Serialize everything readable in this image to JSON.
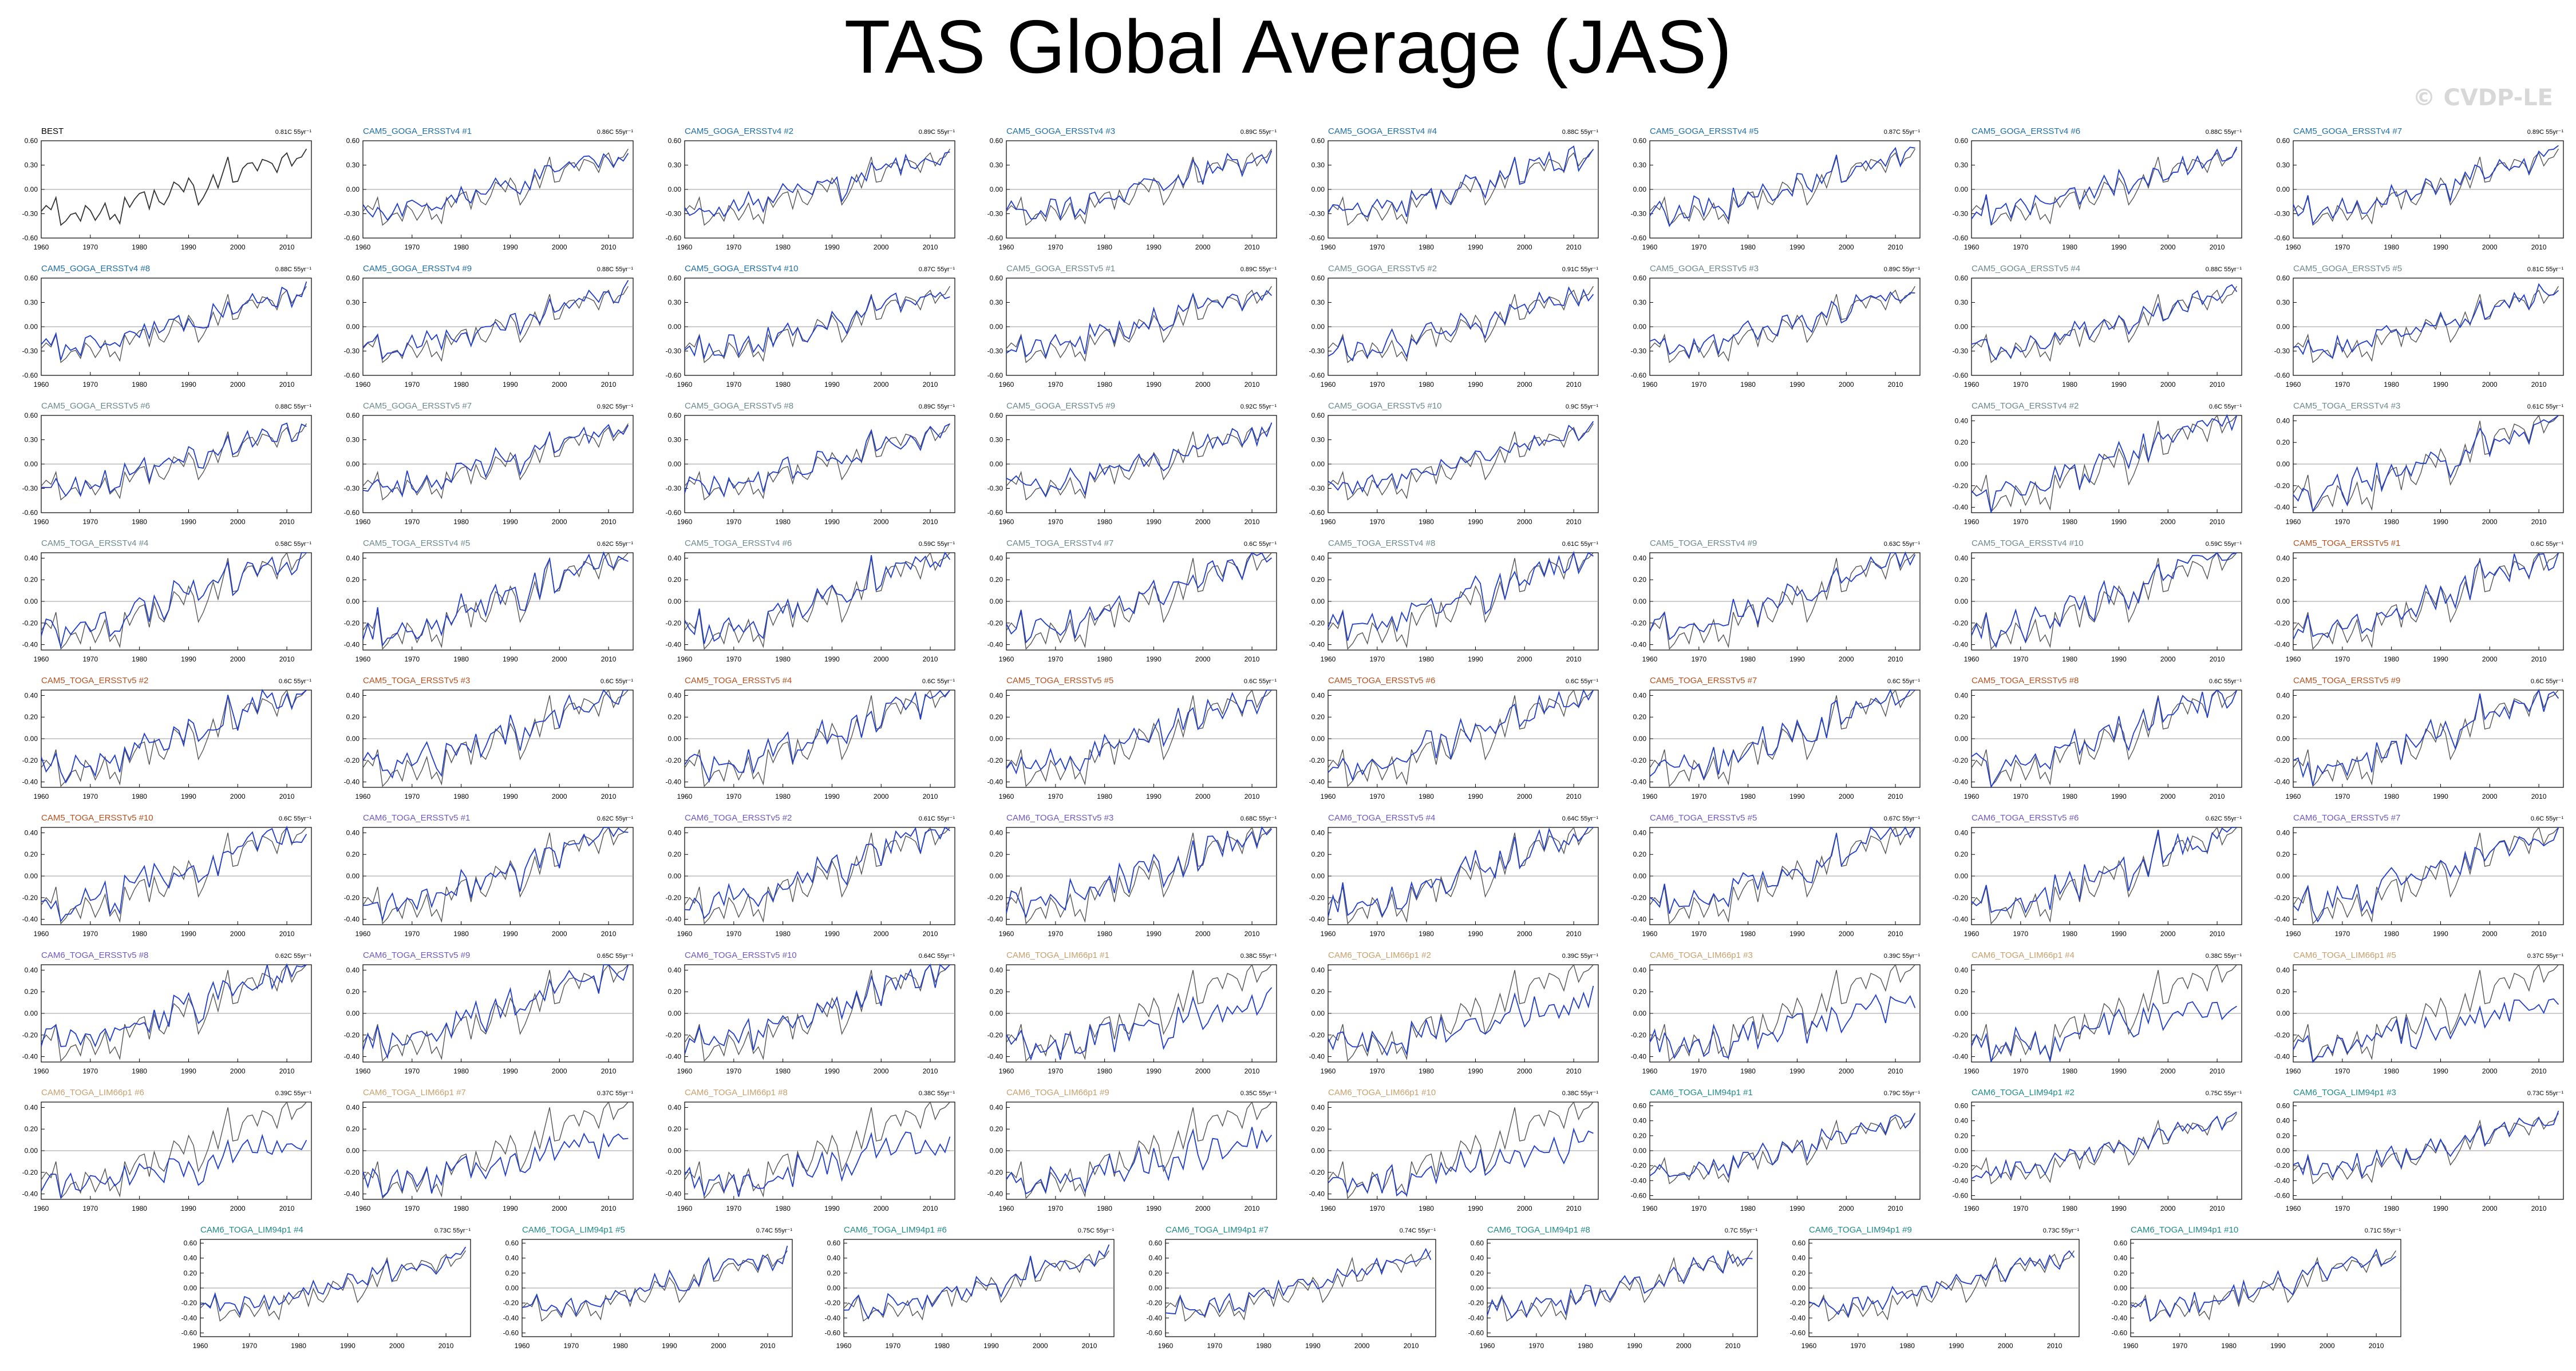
{
  "page": {
    "title": "TAS Global Average (JAS)",
    "watermark": "© CVDP-LE"
  },
  "colors": {
    "observation_line": "#555555",
    "model_line": "#1f3ccc",
    "zero_line": "#999999",
    "title_black": "#000000",
    "title_goga_v4": "#1f6fa6",
    "title_goga_v5": "#6d8a8a",
    "title_cam5_toga": "#b5501f",
    "title_cam6_toga": "#6f5ac0",
    "title_lim66": "#c9a06d",
    "title_lim94": "#1f8a8a"
  },
  "chart_data": {
    "type": "line",
    "shared": {
      "xlim": [
        1960,
        2015
      ],
      "x_ticks": [
        "1960",
        "1970",
        "1980",
        "1990",
        "2000",
        "2010"
      ],
      "yticks_wide": [
        "0.60",
        "0.30",
        "0.00",
        "-0.30",
        "-0.60"
      ],
      "yticks_narrow": [
        "0.40",
        "0.20",
        "0.00",
        "-0.20",
        "-0.40"
      ],
      "ylim_wide": [
        -0.6,
        0.6
      ],
      "ylim_narrow": [
        -0.45,
        0.45
      ],
      "ylim_lim94": [
        -0.65,
        0.65
      ],
      "yticks_lim94": [
        "0.60",
        "0.40",
        "0.20",
        "0.00",
        "-0.20",
        "-0.40",
        "-0.60"
      ]
    },
    "observations": {
      "name": "BEST",
      "x": [
        1960,
        1961,
        1962,
        1963,
        1964,
        1965,
        1966,
        1967,
        1968,
        1969,
        1970,
        1971,
        1972,
        1973,
        1974,
        1975,
        1976,
        1977,
        1978,
        1979,
        1980,
        1981,
        1982,
        1983,
        1984,
        1985,
        1986,
        1987,
        1988,
        1989,
        1990,
        1991,
        1992,
        1993,
        1994,
        1995,
        1996,
        1997,
        1998,
        1999,
        2000,
        2001,
        2002,
        2003,
        2004,
        2005,
        2006,
        2007,
        2008,
        2009,
        2010,
        2011,
        2012,
        2013,
        2014
      ],
      "y": [
        -0.27,
        -0.2,
        -0.25,
        -0.1,
        -0.44,
        -0.39,
        -0.31,
        -0.29,
        -0.39,
        -0.2,
        -0.26,
        -0.38,
        -0.29,
        -0.17,
        -0.37,
        -0.31,
        -0.42,
        -0.1,
        -0.22,
        -0.12,
        -0.05,
        -0.03,
        -0.24,
        -0.01,
        -0.15,
        -0.19,
        -0.08,
        0.09,
        0.05,
        -0.03,
        0.14,
        0.05,
        -0.19,
        -0.1,
        0.02,
        0.18,
        0.02,
        0.21,
        0.4,
        0.09,
        0.1,
        0.26,
        0.32,
        0.33,
        0.23,
        0.37,
        0.35,
        0.32,
        0.21,
        0.39,
        0.45,
        0.29,
        0.38,
        0.4,
        0.5
      ]
    },
    "panels": [
      {
        "title": "BEST",
        "trend": "0.81C 55yr⁻¹",
        "color": "title_black",
        "row": 0,
        "col": 0,
        "scale": "wide",
        "obs_only": true
      },
      {
        "title": "CAM5_GOGA_ERSSTv4 #1",
        "trend": "0.86C 55yr⁻¹",
        "color": "title_goga_v4",
        "row": 0,
        "col": 1,
        "scale": "wide",
        "seed": 11
      },
      {
        "title": "CAM5_GOGA_ERSSTv4 #2",
        "trend": "0.89C 55yr⁻¹",
        "color": "title_goga_v4",
        "row": 0,
        "col": 2,
        "scale": "wide",
        "seed": 12
      },
      {
        "title": "CAM5_GOGA_ERSSTv4 #3",
        "trend": "0.89C 55yr⁻¹",
        "color": "title_goga_v4",
        "row": 0,
        "col": 3,
        "scale": "wide",
        "seed": 13
      },
      {
        "title": "CAM5_GOGA_ERSSTv4 #4",
        "trend": "0.88C 55yr⁻¹",
        "color": "title_goga_v4",
        "row": 0,
        "col": 4,
        "scale": "wide",
        "seed": 14
      },
      {
        "title": "CAM5_GOGA_ERSSTv4 #5",
        "trend": "0.87C 55yr⁻¹",
        "color": "title_goga_v4",
        "row": 0,
        "col": 5,
        "scale": "wide",
        "seed": 15
      },
      {
        "title": "CAM5_GOGA_ERSSTv4 #6",
        "trend": "0.88C 55yr⁻¹",
        "color": "title_goga_v4",
        "row": 0,
        "col": 6,
        "scale": "wide",
        "seed": 16
      },
      {
        "title": "CAM5_GOGA_ERSSTv4 #7",
        "trend": "0.89C 55yr⁻¹",
        "color": "title_goga_v4",
        "row": 0,
        "col": 7,
        "scale": "wide",
        "seed": 17
      },
      {
        "title": "CAM5_GOGA_ERSSTv4 #8",
        "trend": "0.88C 55yr⁻¹",
        "color": "title_goga_v4",
        "row": 1,
        "col": 0,
        "scale": "wide",
        "seed": 18
      },
      {
        "title": "CAM5_GOGA_ERSSTv4 #9",
        "trend": "0.88C 55yr⁻¹",
        "color": "title_goga_v4",
        "row": 1,
        "col": 1,
        "scale": "wide",
        "seed": 19
      },
      {
        "title": "CAM5_GOGA_ERSSTv4 #10",
        "trend": "0.87C 55yr⁻¹",
        "color": "title_goga_v4",
        "row": 1,
        "col": 2,
        "scale": "wide",
        "seed": 20
      },
      {
        "title": "CAM5_GOGA_ERSSTv5 #1",
        "trend": "0.89C 55yr⁻¹",
        "color": "title_goga_v5",
        "row": 1,
        "col": 3,
        "scale": "wide",
        "seed": 21
      },
      {
        "title": "CAM5_GOGA_ERSSTv5 #2",
        "trend": "0.91C 55yr⁻¹",
        "color": "title_goga_v5",
        "row": 1,
        "col": 4,
        "scale": "wide",
        "seed": 22
      },
      {
        "title": "CAM5_GOGA_ERSSTv5 #3",
        "trend": "0.89C 55yr⁻¹",
        "color": "title_goga_v5",
        "row": 1,
        "col": 5,
        "scale": "wide",
        "seed": 23
      },
      {
        "title": "CAM5_GOGA_ERSSTv5 #4",
        "trend": "0.88C 55yr⁻¹",
        "color": "title_goga_v5",
        "row": 1,
        "col": 6,
        "scale": "wide",
        "seed": 24
      },
      {
        "title": "CAM5_GOGA_ERSSTv5 #5",
        "trend": "0.81C 55yr⁻¹",
        "color": "title_goga_v5",
        "row": 1,
        "col": 7,
        "scale": "wide",
        "seed": 25
      },
      {
        "title": "CAM5_GOGA_ERSSTv5 #6",
        "trend": "0.88C 55yr⁻¹",
        "color": "title_goga_v5",
        "row": 2,
        "col": 0,
        "scale": "wide",
        "seed": 26
      },
      {
        "title": "CAM5_GOGA_ERSSTv5 #7",
        "trend": "0.92C 55yr⁻¹",
        "color": "title_goga_v5",
        "row": 2,
        "col": 1,
        "scale": "wide",
        "seed": 27
      },
      {
        "title": "CAM5_GOGA_ERSSTv5 #8",
        "trend": "0.89C 55yr⁻¹",
        "color": "title_goga_v5",
        "row": 2,
        "col": 2,
        "scale": "wide",
        "seed": 28
      },
      {
        "title": "CAM5_GOGA_ERSSTv5 #9",
        "trend": "0.92C 55yr⁻¹",
        "color": "title_goga_v5",
        "row": 2,
        "col": 3,
        "scale": "wide",
        "seed": 29
      },
      {
        "title": "CAM5_GOGA_ERSSTv5 #10",
        "trend": "0.9C 55yr⁻¹",
        "color": "title_goga_v5",
        "row": 2,
        "col": 4,
        "scale": "wide",
        "seed": 30
      },
      {
        "title": "CAM5_TOGA_ERSSTv4 #2",
        "trend": "0.6C 55yr⁻¹",
        "color": "title_goga_v5",
        "row": 2,
        "col": 6,
        "scale": "narrow",
        "seed": 31
      },
      {
        "title": "CAM5_TOGA_ERSSTv4 #3",
        "trend": "0.61C 55yr⁻¹",
        "color": "title_goga_v5",
        "row": 2,
        "col": 7,
        "scale": "narrow",
        "seed": 32
      },
      {
        "title": "CAM5_TOGA_ERSSTv4 #4",
        "trend": "0.58C 55yr⁻¹",
        "color": "title_goga_v5",
        "row": 3,
        "col": 0,
        "scale": "narrow",
        "seed": 33
      },
      {
        "title": "CAM5_TOGA_ERSSTv4 #5",
        "trend": "0.62C 55yr⁻¹",
        "color": "title_goga_v5",
        "row": 3,
        "col": 1,
        "scale": "narrow",
        "seed": 34
      },
      {
        "title": "CAM5_TOGA_ERSSTv4 #6",
        "trend": "0.59C 55yr⁻¹",
        "color": "title_goga_v5",
        "row": 3,
        "col": 2,
        "scale": "narrow",
        "seed": 35
      },
      {
        "title": "CAM5_TOGA_ERSSTv4 #7",
        "trend": "0.6C 55yr⁻¹",
        "color": "title_goga_v5",
        "row": 3,
        "col": 3,
        "scale": "narrow",
        "seed": 36
      },
      {
        "title": "CAM5_TOGA_ERSSTv4 #8",
        "trend": "0.61C 55yr⁻¹",
        "color": "title_goga_v5",
        "row": 3,
        "col": 4,
        "scale": "narrow",
        "seed": 37
      },
      {
        "title": "CAM5_TOGA_ERSSTv4 #9",
        "trend": "0.63C 55yr⁻¹",
        "color": "title_goga_v5",
        "row": 3,
        "col": 5,
        "scale": "narrow",
        "seed": 38
      },
      {
        "title": "CAM5_TOGA_ERSSTv4 #10",
        "trend": "0.59C 55yr⁻¹",
        "color": "title_goga_v5",
        "row": 3,
        "col": 6,
        "scale": "narrow",
        "seed": 39
      },
      {
        "title": "CAM5_TOGA_ERSSTv5 #1",
        "trend": "0.6C 55yr⁻¹",
        "color": "title_cam5_toga",
        "row": 3,
        "col": 7,
        "scale": "narrow",
        "seed": 40
      },
      {
        "title": "CAM5_TOGA_ERSSTv5 #2",
        "trend": "0.6C 55yr⁻¹",
        "color": "title_cam5_toga",
        "row": 4,
        "col": 0,
        "scale": "narrow",
        "seed": 41
      },
      {
        "title": "CAM5_TOGA_ERSSTv5 #3",
        "trend": "0.6C 55yr⁻¹",
        "color": "title_cam5_toga",
        "row": 4,
        "col": 1,
        "scale": "narrow",
        "seed": 42
      },
      {
        "title": "CAM5_TOGA_ERSSTv5 #4",
        "trend": "0.6C 55yr⁻¹",
        "color": "title_cam5_toga",
        "row": 4,
        "col": 2,
        "scale": "narrow",
        "seed": 43
      },
      {
        "title": "CAM5_TOGA_ERSSTv5 #5",
        "trend": "0.6C 55yr⁻¹",
        "color": "title_cam5_toga",
        "row": 4,
        "col": 3,
        "scale": "narrow",
        "seed": 44
      },
      {
        "title": "CAM5_TOGA_ERSSTv5 #6",
        "trend": "0.6C 55yr⁻¹",
        "color": "title_cam5_toga",
        "row": 4,
        "col": 4,
        "scale": "narrow",
        "seed": 45
      },
      {
        "title": "CAM5_TOGA_ERSSTv5 #7",
        "trend": "0.6C 55yr⁻¹",
        "color": "title_cam5_toga",
        "row": 4,
        "col": 5,
        "scale": "narrow",
        "seed": 46
      },
      {
        "title": "CAM5_TOGA_ERSSTv5 #8",
        "trend": "0.6C 55yr⁻¹",
        "color": "title_cam5_toga",
        "row": 4,
        "col": 6,
        "scale": "narrow",
        "seed": 47
      },
      {
        "title": "CAM5_TOGA_ERSSTv5 #9",
        "trend": "0.6C 55yr⁻¹",
        "color": "title_cam5_toga",
        "row": 4,
        "col": 7,
        "scale": "narrow",
        "seed": 48
      },
      {
        "title": "CAM5_TOGA_ERSSTv5 #10",
        "trend": "0.6C 55yr⁻¹",
        "color": "title_cam5_toga",
        "row": 5,
        "col": 0,
        "scale": "narrow",
        "seed": 49
      },
      {
        "title": "CAM6_TOGA_ERSSTv5 #1",
        "trend": "0.62C 55yr⁻¹",
        "color": "title_cam6_toga",
        "row": 5,
        "col": 1,
        "scale": "narrow",
        "seed": 50
      },
      {
        "title": "CAM6_TOGA_ERSSTv5 #2",
        "trend": "0.61C 55yr⁻¹",
        "color": "title_cam6_toga",
        "row": 5,
        "col": 2,
        "scale": "narrow",
        "seed": 51
      },
      {
        "title": "CAM6_TOGA_ERSSTv5 #3",
        "trend": "0.68C 55yr⁻¹",
        "color": "title_cam6_toga",
        "row": 5,
        "col": 3,
        "scale": "narrow",
        "seed": 52
      },
      {
        "title": "CAM6_TOGA_ERSSTv5 #4",
        "trend": "0.64C 55yr⁻¹",
        "color": "title_cam6_toga",
        "row": 5,
        "col": 4,
        "scale": "narrow",
        "seed": 53
      },
      {
        "title": "CAM6_TOGA_ERSSTv5 #5",
        "trend": "0.67C 55yr⁻¹",
        "color": "title_cam6_toga",
        "row": 5,
        "col": 5,
        "scale": "narrow",
        "seed": 54
      },
      {
        "title": "CAM6_TOGA_ERSSTv5 #6",
        "trend": "0.62C 55yr⁻¹",
        "color": "title_cam6_toga",
        "row": 5,
        "col": 6,
        "scale": "narrow",
        "seed": 55
      },
      {
        "title": "CAM6_TOGA_ERSSTv5 #7",
        "trend": "0.6C 55yr⁻¹",
        "color": "title_cam6_toga",
        "row": 5,
        "col": 7,
        "scale": "narrow",
        "seed": 56
      },
      {
        "title": "CAM6_TOGA_ERSSTv5 #8",
        "trend": "0.62C 55yr⁻¹",
        "color": "title_cam6_toga",
        "row": 6,
        "col": 0,
        "scale": "narrow",
        "seed": 57
      },
      {
        "title": "CAM6_TOGA_ERSSTv5 #9",
        "trend": "0.65C 55yr⁻¹",
        "color": "title_cam6_toga",
        "row": 6,
        "col": 1,
        "scale": "narrow",
        "seed": 58
      },
      {
        "title": "CAM6_TOGA_ERSSTv5 #10",
        "trend": "0.64C 55yr⁻¹",
        "color": "title_cam6_toga",
        "row": 6,
        "col": 2,
        "scale": "narrow",
        "seed": 59
      },
      {
        "title": "CAM6_TOGA_LIM66p1 #1",
        "trend": "0.38C 55yr⁻¹",
        "color": "title_lim66",
        "row": 6,
        "col": 3,
        "scale": "narrow",
        "seed": 60,
        "lowtrend": true
      },
      {
        "title": "CAM6_TOGA_LIM66p1 #2",
        "trend": "0.39C 55yr⁻¹",
        "color": "title_lim66",
        "row": 6,
        "col": 4,
        "scale": "narrow",
        "seed": 61,
        "lowtrend": true
      },
      {
        "title": "CAM6_TOGA_LIM66p1 #3",
        "trend": "0.39C 55yr⁻¹",
        "color": "title_lim66",
        "row": 6,
        "col": 5,
        "scale": "narrow",
        "seed": 62,
        "lowtrend": true
      },
      {
        "title": "CAM6_TOGA_LIM66p1 #4",
        "trend": "0.38C 55yr⁻¹",
        "color": "title_lim66",
        "row": 6,
        "col": 6,
        "scale": "narrow",
        "seed": 63,
        "lowtrend": true
      },
      {
        "title": "CAM6_TOGA_LIM66p1 #5",
        "trend": "0.37C 55yr⁻¹",
        "color": "title_lim66",
        "row": 6,
        "col": 7,
        "scale": "narrow",
        "seed": 64,
        "lowtrend": true
      },
      {
        "title": "CAM6_TOGA_LIM66p1 #6",
        "trend": "0.39C 55yr⁻¹",
        "color": "title_lim66",
        "row": 7,
        "col": 0,
        "scale": "narrow",
        "seed": 65,
        "lowtrend": true
      },
      {
        "title": "CAM6_TOGA_LIM66p1 #7",
        "trend": "0.37C 55yr⁻¹",
        "color": "title_lim66",
        "row": 7,
        "col": 1,
        "scale": "narrow",
        "seed": 66,
        "lowtrend": true
      },
      {
        "title": "CAM6_TOGA_LIM66p1 #8",
        "trend": "0.38C 55yr⁻¹",
        "color": "title_lim66",
        "row": 7,
        "col": 2,
        "scale": "narrow",
        "seed": 67,
        "lowtrend": true
      },
      {
        "title": "CAM6_TOGA_LIM66p1 #9",
        "trend": "0.35C 55yr⁻¹",
        "color": "title_lim66",
        "row": 7,
        "col": 3,
        "scale": "narrow",
        "seed": 68,
        "lowtrend": true
      },
      {
        "title": "CAM6_TOGA_LIM66p1 #10",
        "trend": "0.38C 55yr⁻¹",
        "color": "title_lim66",
        "row": 7,
        "col": 4,
        "scale": "narrow",
        "seed": 69,
        "lowtrend": true
      },
      {
        "title": "CAM6_TOGA_LIM94p1 #1",
        "trend": "0.79C 55yr⁻¹",
        "color": "title_lim94",
        "row": 7,
        "col": 5,
        "scale": "lim94",
        "seed": 70
      },
      {
        "title": "CAM6_TOGA_LIM94p1 #2",
        "trend": "0.75C 55yr⁻¹",
        "color": "title_lim94",
        "row": 7,
        "col": 6,
        "scale": "lim94",
        "seed": 71
      },
      {
        "title": "CAM6_TOGA_LIM94p1 #3",
        "trend": "0.73C 55yr⁻¹",
        "color": "title_lim94",
        "row": 7,
        "col": 7,
        "scale": "lim94",
        "seed": 72
      },
      {
        "title": "CAM6_TOGA_LIM94p1 #4",
        "trend": "0.73C 55yr⁻¹",
        "color": "title_lim94",
        "row": 8,
        "col": 0,
        "scale": "lim94",
        "seed": 73
      },
      {
        "title": "CAM6_TOGA_LIM94p1 #5",
        "trend": "0.74C 55yr⁻¹",
        "color": "title_lim94",
        "row": 8,
        "col": 1,
        "scale": "lim94",
        "seed": 74
      },
      {
        "title": "CAM6_TOGA_LIM94p1 #6",
        "trend": "0.75C 55yr⁻¹",
        "color": "title_lim94",
        "row": 8,
        "col": 2,
        "scale": "lim94",
        "seed": 75
      },
      {
        "title": "CAM6_TOGA_LIM94p1 #7",
        "trend": "0.74C 55yr⁻¹",
        "color": "title_lim94",
        "row": 8,
        "col": 3,
        "scale": "lim94",
        "seed": 76
      },
      {
        "title": "CAM6_TOGA_LIM94p1 #8",
        "trend": "0.7C 55yr⁻¹",
        "color": "title_lim94",
        "row": 8,
        "col": 4,
        "scale": "lim94",
        "seed": 77
      },
      {
        "title": "CAM6_TOGA_LIM94p1 #9",
        "trend": "0.73C 55yr⁻¹",
        "color": "title_lim94",
        "row": 8,
        "col": 5,
        "scale": "lim94",
        "seed": 78
      },
      {
        "title": "CAM6_TOGA_LIM94p1 #10",
        "trend": "0.71C 55yr⁻¹",
        "color": "title_lim94",
        "row": 8,
        "col": 6,
        "scale": "lim94",
        "seed": 79
      }
    ]
  }
}
